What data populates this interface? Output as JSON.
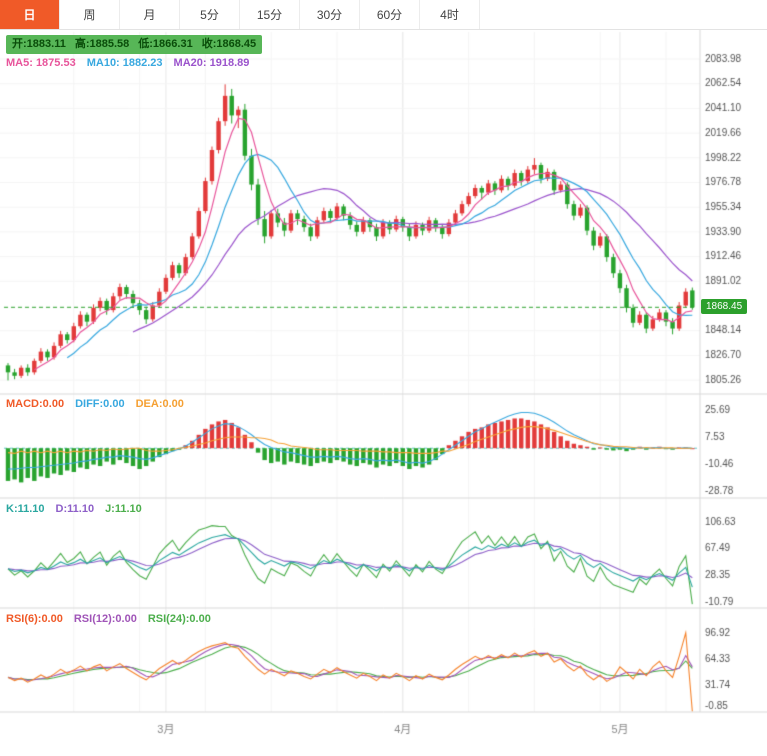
{
  "toolbar": {
    "tabs": [
      {
        "label": "日",
        "name": "tab-day",
        "active": true
      },
      {
        "label": "周",
        "name": "tab-week"
      },
      {
        "label": "月",
        "name": "tab-month"
      },
      {
        "label": "5分",
        "name": "tab-5min"
      },
      {
        "label": "15分",
        "name": "tab-15min"
      },
      {
        "label": "30分",
        "name": "tab-30min"
      },
      {
        "label": "60分",
        "name": "tab-60min"
      },
      {
        "label": "4时",
        "name": "tab-4hour"
      }
    ]
  },
  "ohlc": {
    "items": [
      {
        "text": "开:1883.11",
        "name": "open-value"
      },
      {
        "text": "高:1885.58",
        "name": "high-value"
      },
      {
        "text": "低:1866.31",
        "name": "low-value"
      },
      {
        "text": "收:1868.45",
        "name": "close-value"
      }
    ]
  },
  "ma_legend": [
    {
      "text": "MA5: 1875.53",
      "color": "#e8559b",
      "name": "ma5-legend"
    },
    {
      "text": "MA10: 1882.23",
      "color": "#38a8df",
      "name": "ma10-legend"
    },
    {
      "text": "MA20: 1918.89",
      "color": "#9b54cc",
      "name": "ma20-legend"
    }
  ],
  "main_axis": {
    "labels": [
      "2083.98",
      "2062.54",
      "2041.10",
      "2019.66",
      "1998.22",
      "1976.78",
      "1955.34",
      "1933.90",
      "1912.46",
      "1891.02",
      "1848.14",
      "1826.70",
      "1805.26"
    ],
    "current": {
      "text": "1868.45",
      "value": 1868.45
    }
  },
  "panels": {
    "macd": {
      "legend": [
        {
          "text": "MACD:0.00",
          "color": "#f05a28",
          "name": "macd-legend-value"
        },
        {
          "text": "DIFF:0.00",
          "color": "#38a8df",
          "name": "diff-legend-value"
        },
        {
          "text": "DEA:0.00",
          "color": "#f5a033",
          "name": "dea-legend-value"
        }
      ],
      "axis": [
        "25.69",
        "7.53",
        "-10.46",
        "-28.78"
      ]
    },
    "kdj": {
      "legend": [
        {
          "text": "K:11.10",
          "color": "#2aa7a0",
          "name": "k-legend-value"
        },
        {
          "text": "D:11.10",
          "color": "#8d5fc8",
          "name": "d-legend-value"
        },
        {
          "text": "J:11.10",
          "color": "#4cae4c",
          "name": "j-legend-value"
        }
      ],
      "axis": [
        "106.63",
        "67.49",
        "28.35",
        "-10.79"
      ]
    },
    "rsi": {
      "legend": [
        {
          "text": "RSI(6):0.00",
          "color": "#f05a28",
          "name": "rsi6-legend-value"
        },
        {
          "text": "RSI(12):0.00",
          "color": "#a055b8",
          "name": "rsi12-legend-value"
        },
        {
          "text": "RSI(24):0.00",
          "color": "#4cae4c",
          "name": "rsi24-legend-value"
        }
      ],
      "axis": [
        "96.92",
        "64.33",
        "31.74",
        "-0.85"
      ]
    }
  },
  "x_axis": {
    "labels": [
      {
        "text": "3月",
        "index": 24
      },
      {
        "text": "4月",
        "index": 60
      },
      {
        "text": "5月",
        "index": 93
      }
    ]
  },
  "colors": {
    "accent": "#f05a28",
    "up": "#e23a3a",
    "down": "#28a32e",
    "ma5": "#e8559b",
    "ma10": "#38a8df",
    "ma20": "#9b54cc",
    "diff": "#38a8df",
    "dea": "#f5a033",
    "k": "#2aa7a0",
    "d": "#8d5fc8",
    "j": "#4cae4c",
    "rsi6": "#f5822a",
    "rsi12": "#a055b8",
    "rsi24": "#4cae4c",
    "price_line": "#2ca02c",
    "zero_dash": "#5fc8c8",
    "grid": "#f4f4f4",
    "grid_month": "#e9e9e9",
    "separator": "#d9d9d9",
    "axis_text": "#555555",
    "month_text": "#888888",
    "ohlc_bg": "#57b657",
    "ohlc_text": "#0a4d0a"
  },
  "chart_data": {
    "type": "candlestick",
    "title": "Daily gold price candlestick chart with MA, MACD, KDJ, RSI panels",
    "ohlc_last": {
      "open": 1883.11,
      "high": 1885.58,
      "low": 1866.31,
      "close": 1868.45
    },
    "main_axis_range": [
      1805.26,
      2083.98
    ],
    "candles": [
      [
        1818,
        1820,
        1805,
        1812
      ],
      [
        1812,
        1815,
        1806,
        1809
      ],
      [
        1809,
        1818,
        1807,
        1816
      ],
      [
        1816,
        1819,
        1809,
        1812
      ],
      [
        1812,
        1824,
        1810,
        1822
      ],
      [
        1822,
        1833,
        1820,
        1830
      ],
      [
        1830,
        1832,
        1822,
        1825
      ],
      [
        1825,
        1838,
        1823,
        1835
      ],
      [
        1835,
        1848,
        1833,
        1845
      ],
      [
        1845,
        1847,
        1837,
        1840
      ],
      [
        1840,
        1855,
        1838,
        1852
      ],
      [
        1852,
        1865,
        1850,
        1862
      ],
      [
        1862,
        1864,
        1852,
        1856
      ],
      [
        1856,
        1871,
        1854,
        1868
      ],
      [
        1868,
        1877,
        1865,
        1874
      ],
      [
        1874,
        1876,
        1862,
        1866
      ],
      [
        1866,
        1881,
        1864,
        1878
      ],
      [
        1878,
        1889,
        1875,
        1886
      ],
      [
        1886,
        1888,
        1876,
        1880
      ],
      [
        1880,
        1883,
        1868,
        1872
      ],
      [
        1872,
        1875,
        1862,
        1866
      ],
      [
        1866,
        1869,
        1854,
        1858
      ],
      [
        1858,
        1873,
        1856,
        1870
      ],
      [
        1870,
        1885,
        1868,
        1882
      ],
      [
        1882,
        1897,
        1880,
        1894
      ],
      [
        1894,
        1908,
        1892,
        1905
      ],
      [
        1905,
        1907,
        1894,
        1898
      ],
      [
        1898,
        1915,
        1896,
        1912
      ],
      [
        1912,
        1933,
        1910,
        1930
      ],
      [
        1930,
        1955,
        1928,
        1952
      ],
      [
        1952,
        1981,
        1950,
        1978
      ],
      [
        1978,
        2008,
        1975,
        2005
      ],
      [
        2005,
        2033,
        2002,
        2030
      ],
      [
        2030,
        2062,
        2026,
        2052
      ],
      [
        2052,
        2058,
        2028,
        2035
      ],
      [
        2035,
        2043,
        2024,
        2040
      ],
      [
        2040,
        2045,
        1996,
        2000
      ],
      [
        2000,
        2006,
        1970,
        1975
      ],
      [
        1975,
        1980,
        1940,
        1945
      ],
      [
        1945,
        1952,
        1924,
        1930
      ],
      [
        1930,
        1953,
        1928,
        1950
      ],
      [
        1950,
        1954,
        1938,
        1942
      ],
      [
        1942,
        1946,
        1930,
        1935
      ],
      [
        1935,
        1953,
        1933,
        1950
      ],
      [
        1950,
        1953,
        1940,
        1945
      ],
      [
        1945,
        1948,
        1934,
        1938
      ],
      [
        1938,
        1941,
        1926,
        1930
      ],
      [
        1930,
        1947,
        1928,
        1944
      ],
      [
        1944,
        1955,
        1942,
        1952
      ],
      [
        1952,
        1954,
        1942,
        1946
      ],
      [
        1946,
        1959,
        1944,
        1956
      ],
      [
        1956,
        1958,
        1944,
        1948
      ],
      [
        1948,
        1951,
        1936,
        1940
      ],
      [
        1940,
        1943,
        1930,
        1934
      ],
      [
        1934,
        1947,
        1932,
        1944
      ],
      [
        1944,
        1946,
        1934,
        1938
      ],
      [
        1938,
        1941,
        1926,
        1930
      ],
      [
        1930,
        1945,
        1928,
        1942
      ],
      [
        1942,
        1944,
        1932,
        1936
      ],
      [
        1936,
        1948,
        1934,
        1945
      ],
      [
        1945,
        1947,
        1934,
        1938
      ],
      [
        1938,
        1941,
        1926,
        1930
      ],
      [
        1930,
        1943,
        1928,
        1940
      ],
      [
        1940,
        1942,
        1931,
        1935
      ],
      [
        1935,
        1947,
        1933,
        1944
      ],
      [
        1944,
        1946,
        1934,
        1938
      ],
      [
        1938,
        1940,
        1928,
        1932
      ],
      [
        1932,
        1945,
        1930,
        1942
      ],
      [
        1942,
        1953,
        1940,
        1950
      ],
      [
        1950,
        1961,
        1948,
        1958
      ],
      [
        1958,
        1968,
        1956,
        1965
      ],
      [
        1965,
        1975,
        1963,
        1972
      ],
      [
        1972,
        1974,
        1962,
        1968
      ],
      [
        1968,
        1979,
        1966,
        1976
      ],
      [
        1976,
        1978,
        1966,
        1970
      ],
      [
        1970,
        1983,
        1968,
        1980
      ],
      [
        1980,
        1982,
        1970,
        1974
      ],
      [
        1974,
        1988,
        1972,
        1985
      ],
      [
        1985,
        1987,
        1974,
        1978
      ],
      [
        1978,
        1991,
        1976,
        1988
      ],
      [
        1988,
        1998,
        1984,
        1992
      ],
      [
        1992,
        1994,
        1976,
        1980
      ],
      [
        1980,
        1989,
        1978,
        1986
      ],
      [
        1986,
        1988,
        1966,
        1970
      ],
      [
        1970,
        1978,
        1968,
        1975
      ],
      [
        1975,
        1977,
        1954,
        1958
      ],
      [
        1958,
        1961,
        1944,
        1948
      ],
      [
        1948,
        1958,
        1946,
        1955
      ],
      [
        1955,
        1957,
        1931,
        1935
      ],
      [
        1935,
        1938,
        1918,
        1922
      ],
      [
        1922,
        1933,
        1920,
        1930
      ],
      [
        1930,
        1932,
        1908,
        1912
      ],
      [
        1912,
        1915,
        1894,
        1898
      ],
      [
        1898,
        1901,
        1881,
        1885
      ],
      [
        1885,
        1888,
        1864,
        1868
      ],
      [
        1868,
        1871,
        1851,
        1855
      ],
      [
        1855,
        1865,
        1853,
        1862
      ],
      [
        1862,
        1864,
        1846,
        1850
      ],
      [
        1850,
        1861,
        1848,
        1858
      ],
      [
        1858,
        1867,
        1856,
        1864
      ],
      [
        1864,
        1866,
        1852,
        1856
      ],
      [
        1856,
        1859,
        1845,
        1850
      ],
      [
        1850,
        1873,
        1848,
        1870
      ],
      [
        1870,
        1885,
        1868,
        1882
      ],
      [
        1883.11,
        1885.58,
        1866.31,
        1868.45
      ]
    ],
    "macd": {
      "hist": [
        -22,
        -21,
        -23,
        -20,
        -22,
        -19,
        -20,
        -17,
        -18,
        -15,
        -16,
        -13,
        -14,
        -11,
        -12,
        -9,
        -11,
        -8,
        -10,
        -12,
        -14,
        -12,
        -9,
        -6,
        -4,
        -2,
        -1,
        2,
        5,
        9,
        13,
        16,
        18,
        19,
        17,
        14,
        9,
        4,
        -3,
        -8,
        -10,
        -9,
        -11,
        -9,
        -10,
        -11,
        -12,
        -10,
        -9,
        -10,
        -8,
        -9,
        -11,
        -12,
        -10,
        -11,
        -13,
        -11,
        -12,
        -10,
        -12,
        -14,
        -12,
        -13,
        -11,
        -8,
        -4,
        2,
        5,
        8,
        11,
        13,
        14,
        16,
        17,
        18,
        19,
        20,
        20,
        19,
        18,
        16,
        14,
        11,
        8,
        5,
        3,
        2,
        1,
        -1,
        0.5,
        -1,
        -1.5,
        -1,
        -2,
        -1,
        1,
        -1,
        0.5,
        1,
        -0.5,
        -1,
        0.5,
        0.5,
        0
      ],
      "diff": [
        -14,
        -14,
        -13.5,
        -13,
        -13,
        -12.5,
        -12,
        -11.5,
        -11,
        -10.5,
        -10,
        -9,
        -8.5,
        -7.5,
        -7,
        -6,
        -6,
        -5,
        -5.5,
        -6,
        -7,
        -7.5,
        -6.5,
        -5,
        -3.5,
        -2,
        -0.5,
        1.5,
        4,
        7,
        10,
        13,
        15,
        16.5,
        16,
        14.5,
        12,
        9,
        5.5,
        2.5,
        0.5,
        -1,
        -2.5,
        -3,
        -4,
        -5,
        -6,
        -6,
        -5.5,
        -6,
        -5.5,
        -6,
        -7,
        -7.5,
        -7,
        -7.5,
        -8.5,
        -8,
        -8.5,
        -8,
        -9,
        -10,
        -9.5,
        -10,
        -9,
        -7,
        -4,
        -1,
        2,
        5,
        8,
        11,
        13,
        15.5,
        17.5,
        19.5,
        21.5,
        23,
        24,
        24,
        23.5,
        22,
        20,
        17.5,
        14.5,
        11.5,
        9,
        7,
        5,
        3,
        2.5,
        1.5,
        0.5,
        0.5,
        0,
        0,
        0.5,
        0,
        0.2,
        0.5,
        0,
        -0.2,
        0,
        0.2,
        0
      ]
    },
    "kdj_k": [
      38,
      34,
      36,
      32,
      35,
      40,
      37,
      42,
      48,
      44,
      47,
      52,
      46,
      50,
      54,
      47,
      52,
      56,
      50,
      45,
      40,
      36,
      42,
      50,
      56,
      62,
      58,
      64,
      70,
      76,
      80,
      84,
      86,
      88,
      84,
      82,
      72,
      62,
      52,
      45,
      50,
      46,
      42,
      48,
      46,
      42,
      38,
      44,
      50,
      46,
      52,
      48,
      43,
      38,
      44,
      40,
      35,
      42,
      38,
      44,
      40,
      35,
      41,
      37,
      43,
      39,
      36,
      42,
      50,
      58,
      64,
      70,
      66,
      72,
      68,
      74,
      70,
      76,
      71,
      77,
      80,
      72,
      76,
      64,
      68,
      58,
      52,
      58,
      46,
      40,
      46,
      38,
      32,
      28,
      24,
      20,
      26,
      22,
      27,
      31,
      26,
      21,
      32,
      40,
      11.1
    ],
    "rsi6": [
      42,
      38,
      41,
      36,
      40,
      45,
      41,
      46,
      52,
      47,
      51,
      56,
      50,
      55,
      58,
      50,
      55,
      59,
      53,
      48,
      43,
      39,
      46,
      53,
      58,
      63,
      58,
      63,
      69,
      74,
      78,
      81,
      83,
      85,
      80,
      78,
      68,
      60,
      52,
      46,
      52,
      48,
      44,
      50,
      47,
      43,
      40,
      46,
      52,
      48,
      54,
      49,
      45,
      41,
      47,
      43,
      38,
      45,
      41,
      47,
      43,
      38,
      44,
      40,
      46,
      42,
      39,
      45,
      52,
      58,
      63,
      68,
      64,
      69,
      65,
      70,
      66,
      72,
      67,
      72,
      75,
      68,
      72,
      61,
      65,
      56,
      50,
      56,
      45,
      39,
      45,
      37,
      42,
      55,
      48,
      40,
      52,
      44,
      55,
      62,
      50,
      42,
      68,
      97,
      0
    ]
  }
}
